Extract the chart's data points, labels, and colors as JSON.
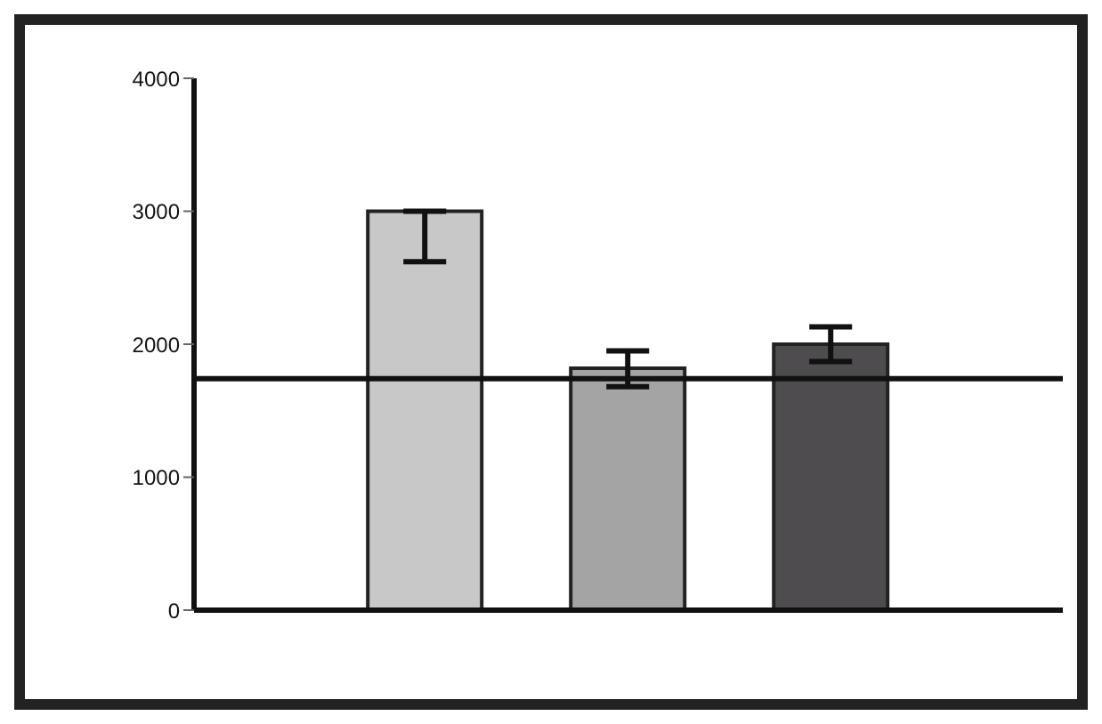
{
  "chart_data": {
    "type": "bar",
    "categories": [
      null
    ],
    "series": [
      {
        "color": "#c8c8c8",
        "values": [
          3000
        ],
        "errors": [
          [
            2620,
            3000
          ]
        ]
      },
      {
        "color": "#a4a4a4",
        "values": [
          1820
        ],
        "errors": [
          [
            1680,
            1950
          ]
        ]
      },
      {
        "color": "#4e4c4e",
        "values": [
          2000
        ],
        "errors": [
          [
            1870,
            2130
          ]
        ]
      }
    ],
    "ylim": [
      0,
      4000
    ],
    "yticks": [
      0,
      1000,
      2000,
      3000,
      4000
    ],
    "grid": false,
    "ref_lines": [
      {
        "axis": "y",
        "value": 1740,
        "color": "#111111"
      }
    ]
  }
}
